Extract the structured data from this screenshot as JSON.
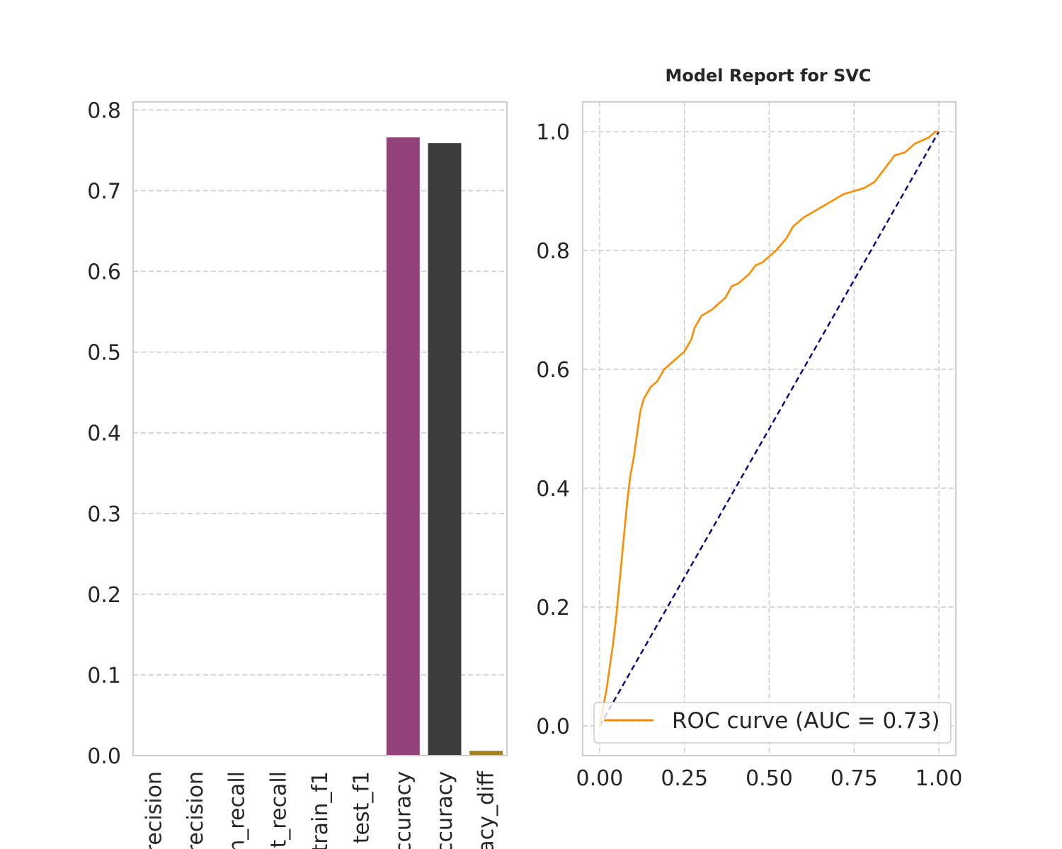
{
  "figure": {
    "title": "Model Report for SVC"
  },
  "chart_data": [
    {
      "type": "bar",
      "categories": [
        "train_precision",
        "test_precision",
        "train_recall",
        "test_recall",
        "train_f1",
        "test_f1",
        "train_accuracy",
        "test_accuracy",
        "accuracy_diff"
      ],
      "category_labels_visible": [
        "recision",
        "recision",
        "n_recall",
        "t_recall",
        "train_f1",
        "test_f1",
        "ccuracy",
        "ccuracy",
        "acy_diff"
      ],
      "values": [
        0.0,
        0.0,
        0.0,
        0.0,
        0.0,
        0.0,
        0.766,
        0.759,
        0.006
      ],
      "colors": [
        "#3a66c8",
        "#c0722e",
        "#2f8f3a",
        "#b73d3d",
        "#7a58a8",
        "#7a5540",
        "#93427a",
        "#3c3c3c",
        "#a5822a"
      ],
      "ylim": [
        0,
        0.81
      ],
      "yticks": [
        0.0,
        0.1,
        0.2,
        0.3,
        0.4,
        0.5,
        0.6,
        0.7,
        0.8
      ],
      "ytick_labels": [
        "0.0",
        "0.1",
        "0.2",
        "0.3",
        "0.4",
        "0.5",
        "0.6",
        "0.7",
        "0.8"
      ],
      "grid": true,
      "xlabel": "",
      "ylabel": ""
    },
    {
      "type": "line",
      "title": "Model Report for SVC",
      "xlim": [
        -0.05,
        1.05
      ],
      "ylim": [
        -0.05,
        1.05
      ],
      "xticks": [
        0.0,
        0.25,
        0.5,
        0.75,
        1.0
      ],
      "xtick_labels": [
        "0.00",
        "0.25",
        "0.50",
        "0.75",
        "1.00"
      ],
      "yticks": [
        0.0,
        0.2,
        0.4,
        0.6,
        0.8,
        1.0
      ],
      "ytick_labels": [
        "0.0",
        "0.2",
        "0.4",
        "0.6",
        "0.8",
        "1.0"
      ],
      "grid": true,
      "legend_position": "lower-right",
      "series": [
        {
          "name": "ROC curve (AUC = 0.73)",
          "color": "#ff8c00",
          "style": "solid",
          "x": [
            0.0,
            0.01,
            0.02,
            0.03,
            0.04,
            0.05,
            0.06,
            0.07,
            0.08,
            0.09,
            0.1,
            0.11,
            0.12,
            0.13,
            0.14,
            0.15,
            0.17,
            0.19,
            0.21,
            0.23,
            0.25,
            0.27,
            0.28,
            0.3,
            0.33,
            0.35,
            0.37,
            0.39,
            0.41,
            0.44,
            0.46,
            0.48,
            0.5,
            0.52,
            0.55,
            0.57,
            0.6,
            0.63,
            0.66,
            0.69,
            0.72,
            0.75,
            0.78,
            0.81,
            0.83,
            0.85,
            0.87,
            0.9,
            0.93,
            0.95,
            0.97,
            0.99,
            1.0
          ],
          "y": [
            0.0,
            0.03,
            0.06,
            0.1,
            0.14,
            0.19,
            0.25,
            0.31,
            0.37,
            0.42,
            0.45,
            0.49,
            0.53,
            0.55,
            0.56,
            0.57,
            0.58,
            0.6,
            0.61,
            0.62,
            0.63,
            0.65,
            0.67,
            0.69,
            0.7,
            0.71,
            0.72,
            0.74,
            0.745,
            0.76,
            0.775,
            0.78,
            0.79,
            0.8,
            0.82,
            0.84,
            0.855,
            0.865,
            0.875,
            0.885,
            0.895,
            0.9,
            0.905,
            0.915,
            0.93,
            0.945,
            0.96,
            0.965,
            0.98,
            0.985,
            0.99,
            1.0,
            1.0
          ]
        },
        {
          "name": "",
          "color": "#000080",
          "style": "dashed",
          "x": [
            0.0,
            1.0
          ],
          "y": [
            0.0,
            1.0
          ]
        }
      ]
    }
  ]
}
